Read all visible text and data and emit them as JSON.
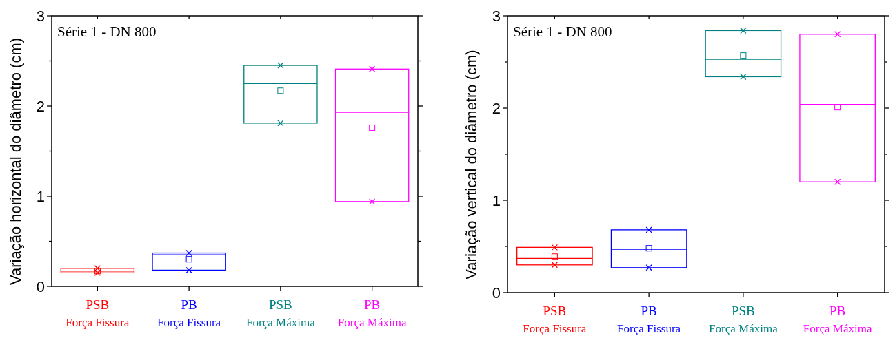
{
  "chart_data": [
    {
      "type": "box",
      "ylabel": "Variação horizontal do diâmetro (cm)",
      "annotations": [
        "Série 1 - DN 800"
      ],
      "categories": [
        "PSB\nForça Fissura",
        "PB\nForça Fissura",
        "PSB\nForça Máxima",
        "PB\nForça Máxima"
      ],
      "colors": [
        "#ff0000",
        "#0000ff",
        "#008080",
        "#ff00ff"
      ],
      "ylim": [
        0,
        3
      ],
      "yticks": [
        0,
        {
          "value": 0.5,
          "label": null
        },
        1,
        {
          "value": 1.5,
          "label": null
        },
        2,
        {
          "value": 2.5,
          "label": null
        },
        3
      ],
      "grid": false,
      "boxes": [
        {
          "low": 0.15,
          "q1": 0.15,
          "median": 0.17,
          "q3": 0.2,
          "high": 0.2,
          "mean": 0.17
        },
        {
          "low": 0.18,
          "q1": 0.18,
          "median": 0.35,
          "q3": 0.37,
          "high": 0.37,
          "mean": 0.3
        },
        {
          "low": 1.81,
          "q1": 1.81,
          "median": 2.25,
          "q3": 2.45,
          "high": 2.45,
          "mean": 2.17
        },
        {
          "low": 0.94,
          "q1": 0.94,
          "median": 1.93,
          "q3": 2.41,
          "high": 2.41,
          "mean": 1.76
        }
      ],
      "series": [
        {
          "type": "scatter",
          "marker": "cross",
          "x": [
            "PSB\nForça Fissura",
            "PB\nForça Fissura",
            "PSB\nForça Máxima",
            "PB\nForça Máxima",
            "PSB\nForça Fissura",
            "PB\nForça Fissura",
            "PSB\nForça Máxima",
            "PB\nForça Máxima"
          ],
          "values": [
            0.2,
            0.37,
            2.45,
            2.41,
            0.15,
            0.18,
            1.81,
            0.94
          ],
          "colors": [
            "#ff0000",
            "#0000ff",
            "#008080",
            "#ff00ff",
            "#ff0000",
            "#0000ff",
            "#008080",
            "#ff00ff"
          ]
        }
      ]
    },
    {
      "type": "box",
      "ylabel": "Variação vertical do diâmetro (cm)",
      "annotations": [
        "Série 1 - DN 800"
      ],
      "categories": [
        "PSB\nForça Fissura",
        "PB\nForça Fissura",
        "PSB\nForça Máxima",
        "PB\nForça Máxima"
      ],
      "colors": [
        "#ff0000",
        "#0000ff",
        "#008080",
        "#ff00ff"
      ],
      "ylim": [
        0,
        3
      ],
      "yticks": [
        0,
        {
          "value": 0.5,
          "label": null
        },
        1,
        {
          "value": 1.5,
          "label": null
        },
        2,
        {
          "value": 2.5,
          "label": null
        },
        3
      ],
      "grid": false,
      "boxes": [
        {
          "low": 0.3,
          "q1": 0.3,
          "median": 0.37,
          "q3": 0.49,
          "high": 0.49,
          "mean": 0.39
        },
        {
          "low": 0.27,
          "q1": 0.27,
          "median": 0.47,
          "q3": 0.68,
          "high": 0.68,
          "mean": 0.48
        },
        {
          "low": 2.34,
          "q1": 2.34,
          "median": 2.53,
          "q3": 2.84,
          "high": 2.84,
          "mean": 2.57
        },
        {
          "low": 1.2,
          "q1": 1.2,
          "median": 2.04,
          "q3": 2.8,
          "high": 2.8,
          "mean": 2.01
        }
      ],
      "series": [
        {
          "type": "scatter",
          "marker": "cross",
          "x": [
            "PSB\nForça Fissura",
            "PB\nForça Fissura",
            "PSB\nForça Máxima",
            "PB\nForça Máxima",
            "PSB\nForça Fissura",
            "PB\nForça Fissura",
            "PSB\nForça Máxima",
            "PB\nForça Máxima"
          ],
          "values": [
            0.49,
            0.68,
            2.84,
            2.8,
            0.3,
            0.27,
            2.34,
            1.2
          ],
          "colors": [
            "#ff0000",
            "#0000ff",
            "#008080",
            "#ff00ff",
            "#ff0000",
            "#0000ff",
            "#008080",
            "#ff00ff"
          ]
        }
      ]
    }
  ]
}
